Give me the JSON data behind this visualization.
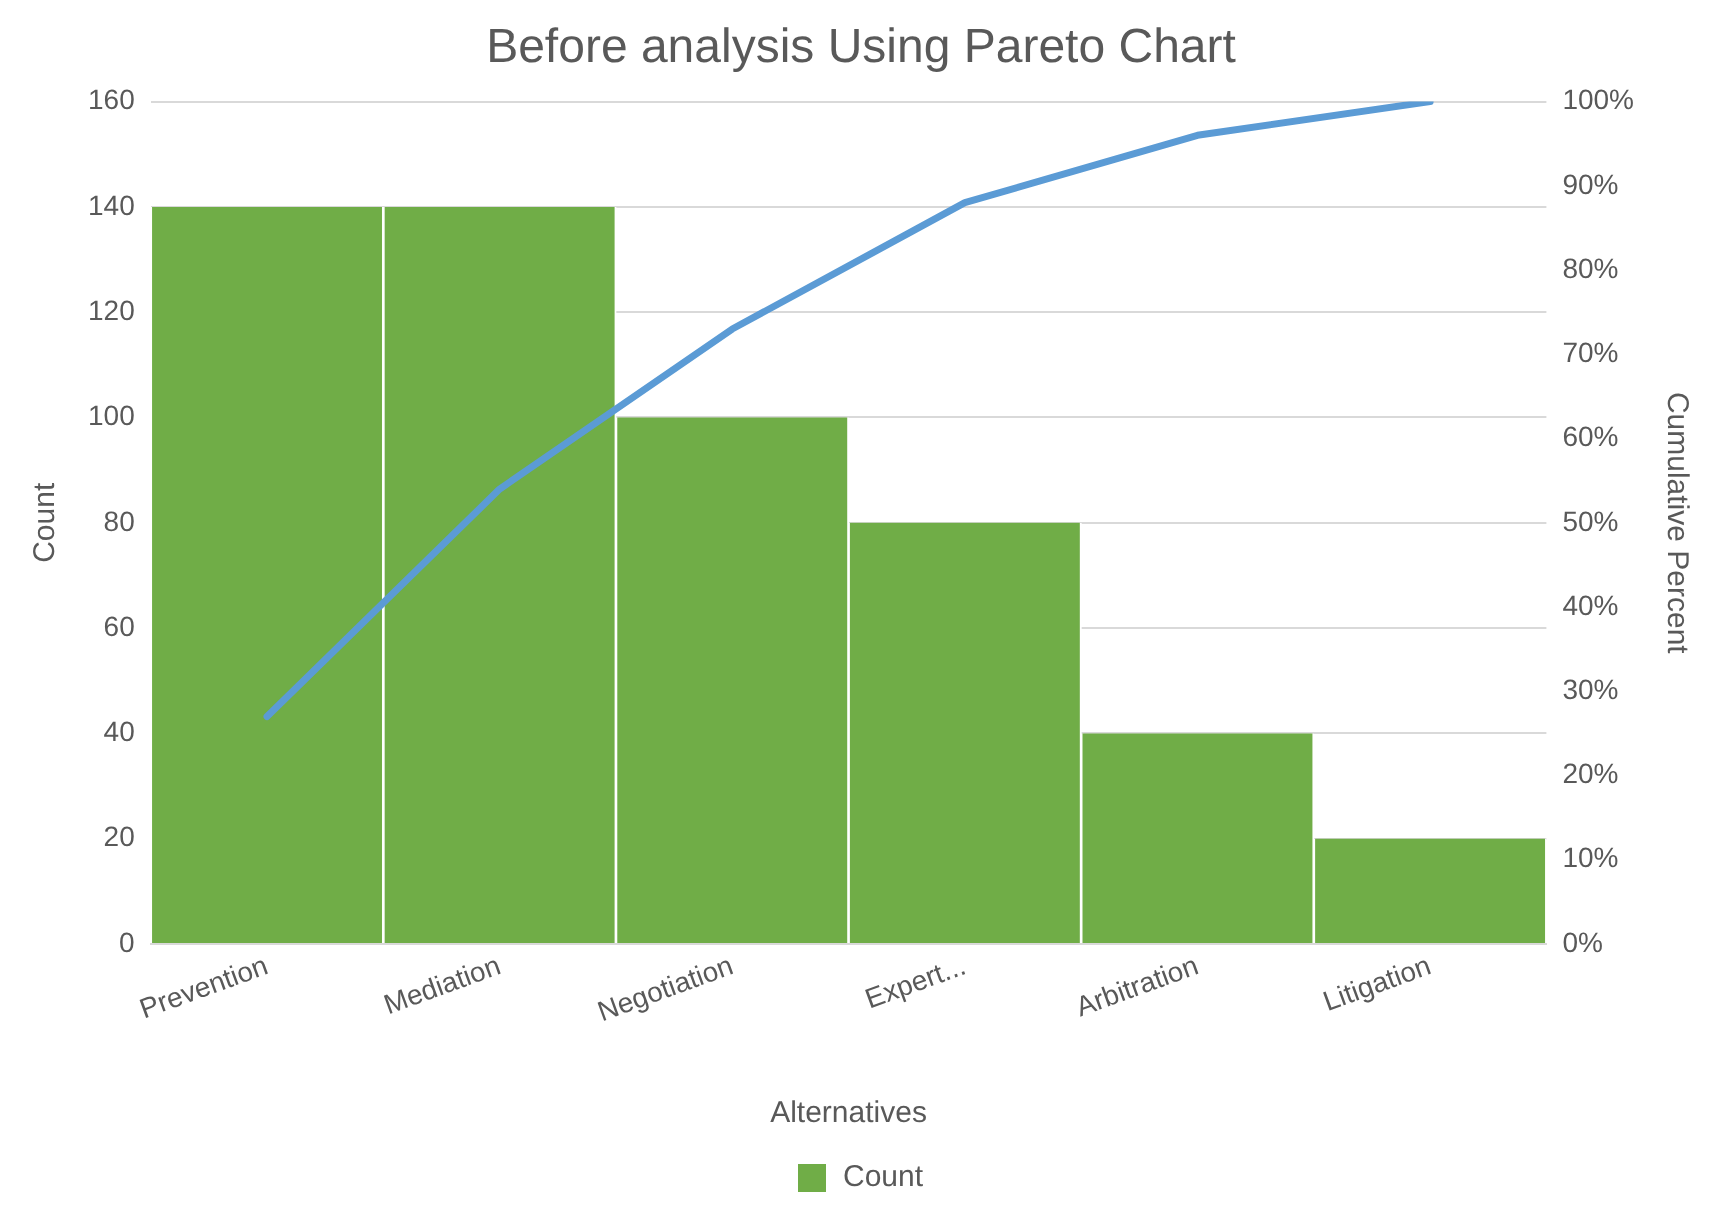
{
  "chart_data": {
    "type": "bar",
    "title": "Before analysis Using Pareto Chart",
    "xlabel": "Alternatives",
    "ylabel": "Count",
    "y2label": "Cumulative Percent",
    "categories": [
      "Prevention",
      "Mediation",
      "Negotiation",
      "Expert...",
      "Arbitration",
      "Litigation"
    ],
    "series": [
      {
        "name": "Count",
        "color": "#70ad47",
        "values": [
          140,
          140,
          100,
          80,
          40,
          20
        ]
      },
      {
        "type": "line",
        "axis": "y2",
        "color": "#5b9bd5",
        "values": [
          27,
          54,
          73,
          88,
          96,
          100
        ]
      }
    ],
    "ylim": [
      0,
      160
    ],
    "yticks": [
      0,
      20,
      40,
      60,
      80,
      100,
      120,
      140,
      160
    ],
    "y2lim": [
      0,
      100
    ],
    "y2ticks": [
      {
        "value": 0,
        "label": "0%"
      },
      {
        "value": 10,
        "label": "10%"
      },
      {
        "value": 20,
        "label": "20%"
      },
      {
        "value": 30,
        "label": "30%"
      },
      {
        "value": 40,
        "label": "40%"
      },
      {
        "value": 50,
        "label": "50%"
      },
      {
        "value": 60,
        "label": "60%"
      },
      {
        "value": 70,
        "label": "70%"
      },
      {
        "value": 80,
        "label": "80%"
      },
      {
        "value": 90,
        "label": "90%"
      },
      {
        "value": 100,
        "label": "100%"
      }
    ],
    "grid": "y",
    "legend": "bottom",
    "marker": "none",
    "line_style": "solid"
  }
}
